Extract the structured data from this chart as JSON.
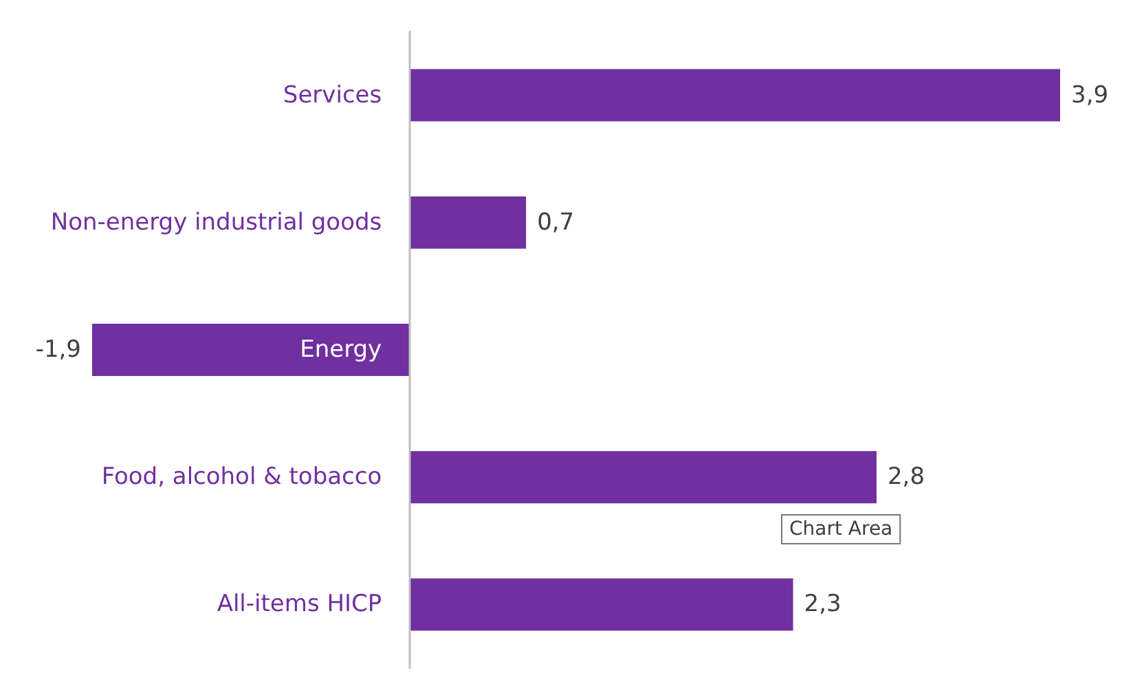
{
  "chart_data": {
    "type": "bar",
    "orientation": "horizontal",
    "categories": [
      "Services",
      "Non-energy industrial goods",
      "Energy",
      "Food, alcohol & tobacco",
      "All-items HICP"
    ],
    "values": [
      3.9,
      0.7,
      -1.9,
      2.8,
      2.3
    ],
    "value_labels": [
      "3,9",
      "0,7",
      "-1,9",
      "2,8",
      "2,3"
    ],
    "color": "#7030a0",
    "annotations": [
      "Chart Area"
    ]
  }
}
